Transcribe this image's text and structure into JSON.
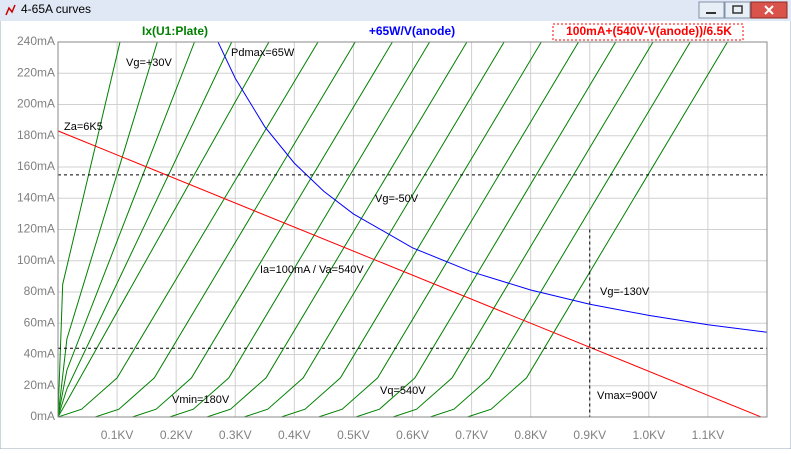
{
  "window": {
    "title": "4-65A curves"
  },
  "chart_data": {
    "type": "line",
    "xlim": [
      0,
      1200
    ],
    "ylim": [
      0,
      240
    ],
    "xticks": [
      {
        "value": 100,
        "label": "0.1KV"
      },
      {
        "value": 200,
        "label": "0.2KV"
      },
      {
        "value": 300,
        "label": "0.3KV"
      },
      {
        "value": 400,
        "label": "0.4KV"
      },
      {
        "value": 500,
        "label": "0.5KV"
      },
      {
        "value": 600,
        "label": "0.6KV"
      },
      {
        "value": 700,
        "label": "0.7KV"
      },
      {
        "value": 800,
        "label": "0.8KV"
      },
      {
        "value": 900,
        "label": "0.9KV"
      },
      {
        "value": 1000,
        "label": "1.0KV"
      },
      {
        "value": 1100,
        "label": "1.1KV"
      }
    ],
    "yticks": [
      {
        "value": 0,
        "label": "0mA"
      },
      {
        "value": 20,
        "label": "20mA"
      },
      {
        "value": 40,
        "label": "40mA"
      },
      {
        "value": 60,
        "label": "60mA"
      },
      {
        "value": 80,
        "label": "80mA"
      },
      {
        "value": 100,
        "label": "100mA"
      },
      {
        "value": 120,
        "label": "120mA"
      },
      {
        "value": 140,
        "label": "140mA"
      },
      {
        "value": 160,
        "label": "160mA"
      },
      {
        "value": 180,
        "label": "180mA"
      },
      {
        "value": 200,
        "label": "200mA"
      },
      {
        "value": 220,
        "label": "220mA"
      },
      {
        "value": 240,
        "label": "240mA"
      }
    ],
    "grid": true,
    "series": [
      {
        "name": "Ix(U1:Plate)",
        "color": "#008000",
        "curves": [
          {
            "x": [
              0,
              8,
              105
            ],
            "values": [
              0,
              85,
              240
            ]
          },
          {
            "x": [
              0,
              15,
              168
            ],
            "values": [
              0,
              50,
              240
            ]
          },
          {
            "x": [
              0,
              15,
              231
            ],
            "values": [
              0,
              30,
              240
            ]
          },
          {
            "x": [
              0,
              15,
              294
            ],
            "values": [
              0,
              18,
              240
            ]
          },
          {
            "x": [
              0,
              15,
              357
            ],
            "values": [
              0,
              10,
              240
            ]
          },
          {
            "x": [
              0,
              40,
              100,
              440
            ],
            "values": [
              0,
              5,
              25,
              240
            ]
          },
          {
            "x": [
              63,
              103,
              163,
              503
            ],
            "values": [
              0,
              5,
              25,
              240
            ]
          },
          {
            "x": [
              126,
              166,
              226,
              566
            ],
            "values": [
              0,
              5,
              25,
              240
            ]
          },
          {
            "x": [
              189,
              229,
              289,
              629
            ],
            "values": [
              0,
              5,
              25,
              240
            ]
          },
          {
            "x": [
              252,
              292,
              352,
              692
            ],
            "values": [
              0,
              5,
              25,
              240
            ]
          },
          {
            "x": [
              315,
              355,
              415,
              755
            ],
            "values": [
              0,
              5,
              25,
              240
            ]
          },
          {
            "x": [
              378,
              418,
              478,
              818
            ],
            "values": [
              0,
              5,
              25,
              240
            ]
          },
          {
            "x": [
              441,
              481,
              541,
              881
            ],
            "values": [
              0,
              5,
              25,
              240
            ]
          },
          {
            "x": [
              504,
              544,
              604,
              944
            ],
            "values": [
              0,
              5,
              25,
              240
            ]
          },
          {
            "x": [
              567,
              607,
              667,
              1007
            ],
            "values": [
              0,
              5,
              25,
              240
            ]
          },
          {
            "x": [
              630,
              670,
              730,
              1070
            ],
            "values": [
              0,
              5,
              25,
              240
            ]
          },
          {
            "x": [
              693,
              733,
              793,
              1133
            ],
            "values": [
              0,
              5,
              25,
              240
            ]
          }
        ]
      },
      {
        "name": "+65W/V(anode)",
        "color": "#0000ff",
        "x": [
          271,
          300,
          350,
          400,
          450,
          500,
          600,
          700,
          800,
          900,
          1000,
          1100,
          1200
        ],
        "values": [
          239.9,
          216.7,
          185.7,
          162.5,
          144.4,
          130,
          108.3,
          92.9,
          81.3,
          72.2,
          65,
          59.1,
          54.2
        ]
      },
      {
        "name": "100mA+(540V-V(anode))/6.5K",
        "color": "#ff0000",
        "x": [
          0,
          1200
        ],
        "values": [
          183.08,
          -1.54
        ]
      }
    ],
    "cursors": {
      "y": [
        155,
        44
      ],
      "x": [
        900
      ]
    },
    "annotations": [
      "Vg=+30V",
      "Pdmax=65W",
      "Za=6K5",
      "Vg=-50V",
      "Ia=100mA / Va=540V",
      "Vg=-130V",
      "Vmin=180V",
      "Vq=540V",
      "Vmax=900V"
    ]
  }
}
